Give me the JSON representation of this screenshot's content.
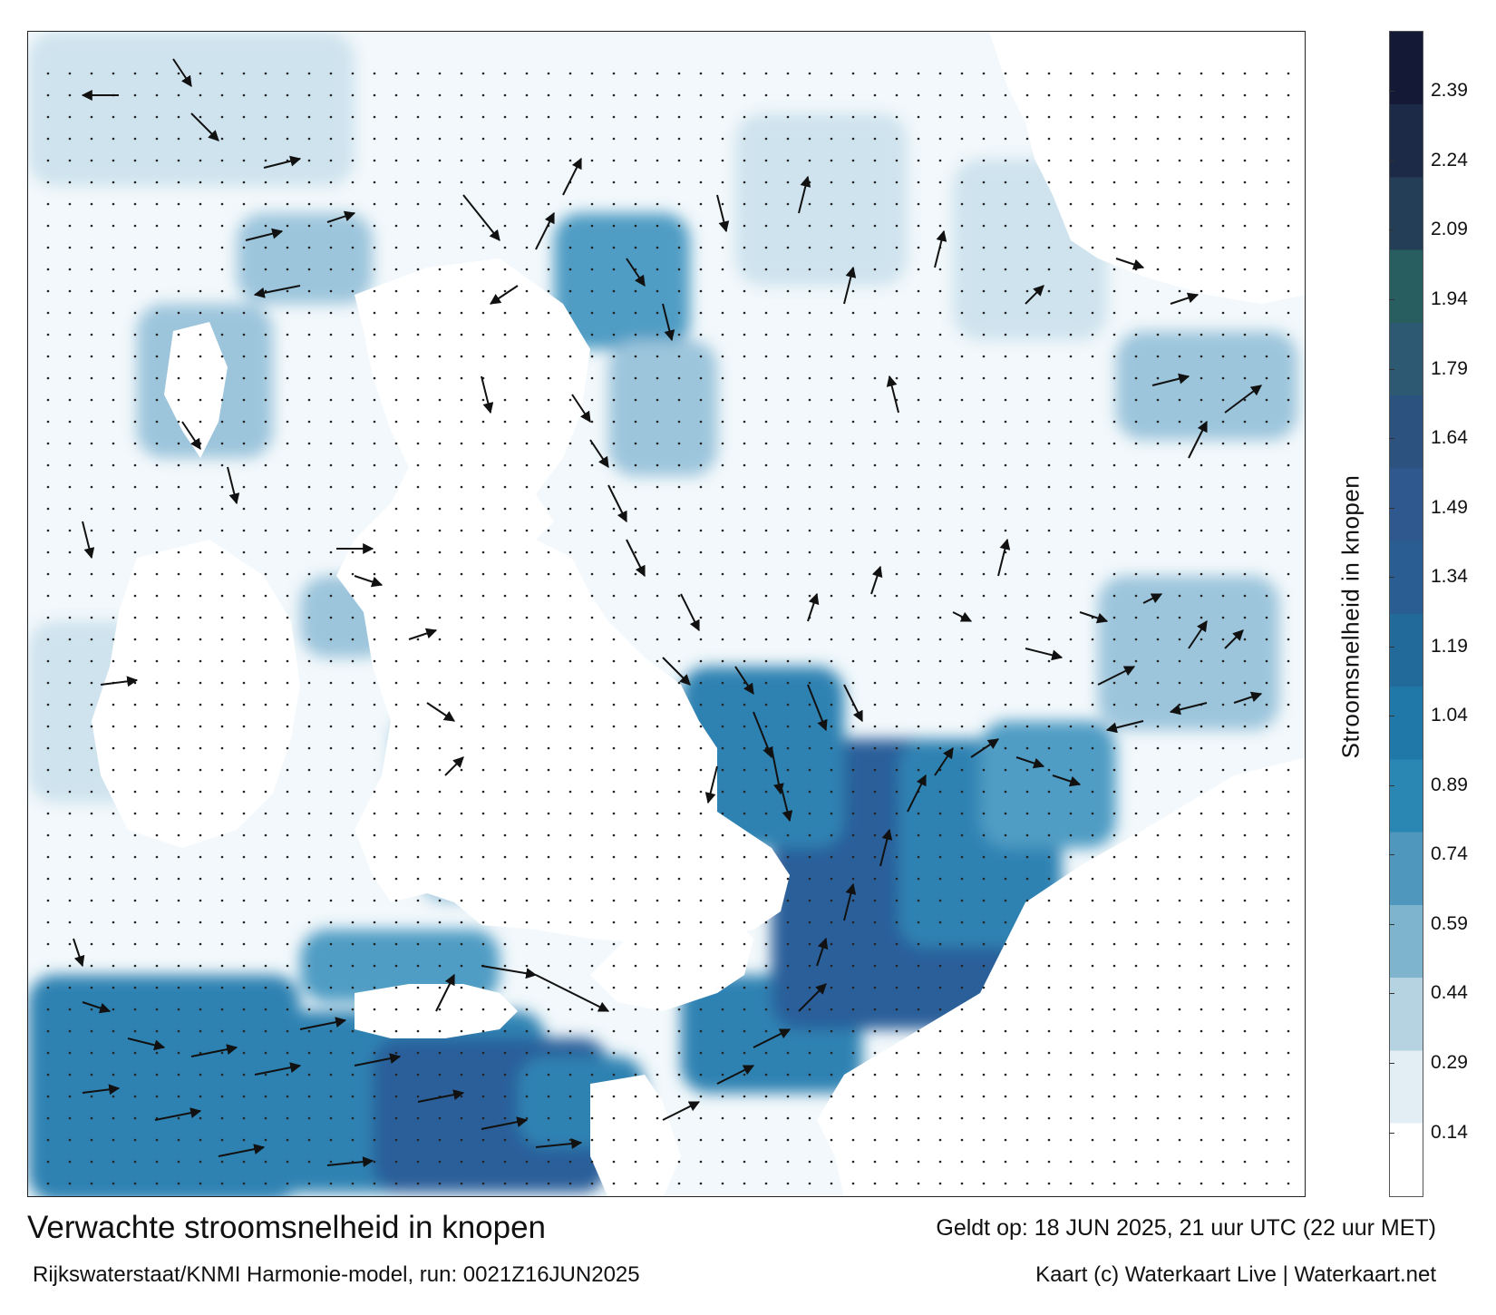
{
  "title": "Verwachte stroomsnelheid in knopen",
  "subtitle": "Rijkswaterstaat/KNMI Harmonie-model, run: 0021Z16JUN2025",
  "valid_time": "Geldt op: 18 JUN 2025, 21 uur UTC (22 uur MET)",
  "credit": "Kaart (c) Waterkaart Live | Waterkaart.net",
  "colorbar": {
    "label": "Stroomsnelheid in knopen",
    "ticks": [
      "2.39",
      "2.24",
      "2.09",
      "1.94",
      "1.79",
      "1.64",
      "1.49",
      "1.34",
      "1.19",
      "1.04",
      "0.89",
      "0.74",
      "0.59",
      "0.44",
      "0.29",
      "0.14"
    ],
    "tick_values": [
      2.39,
      2.24,
      2.09,
      1.94,
      1.79,
      1.64,
      1.49,
      1.34,
      1.19,
      1.04,
      0.89,
      0.74,
      0.59,
      0.44,
      0.29,
      0.14
    ],
    "min": 0.0,
    "max": 2.52,
    "colors": [
      "#ffffff",
      "#e3eef4",
      "#b6d3e2",
      "#7fb4cf",
      "#4f97bd",
      "#2a86b2",
      "#1f78a8",
      "#216a9a",
      "#2a5e92",
      "#2f588e",
      "#2c527f",
      "#2d5a72",
      "#285e60",
      "#233e56",
      "#1c2a47",
      "#141a36"
    ]
  },
  "map": {
    "land_color": "#ffffff",
    "sea_colors": [
      "#f2f8fb",
      "#cfe3ee",
      "#9cc5dc",
      "#4f9cc4",
      "#2d82b2",
      "#2a5f9a"
    ],
    "arrow_color": "#111111"
  }
}
